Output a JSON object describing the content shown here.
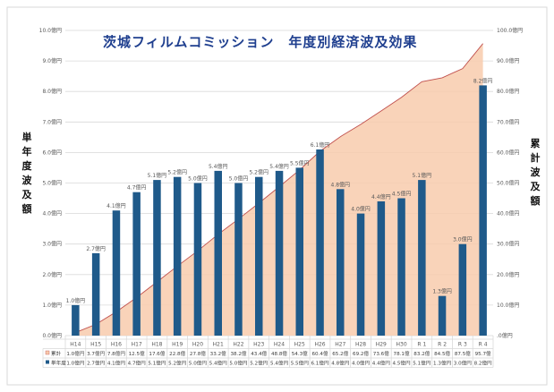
{
  "chart_data": {
    "type": "bar+area",
    "title": "茨城フィルムコミッション　年度別経済波及効果",
    "categories": [
      "H14",
      "H15",
      "H16",
      "H17",
      "H18",
      "H19",
      "H20",
      "H21",
      "H22",
      "H23",
      "H24",
      "H25",
      "H26",
      "H27",
      "H28",
      "H29",
      "H30",
      "R 1",
      "R 2",
      "R 3",
      "R 4"
    ],
    "ylabel_left": "単年度波及額",
    "ylabel_right": "累計波及額",
    "y_left": {
      "min": 0,
      "max": 10,
      "step": 1,
      "ticks": [
        "0.0億円",
        "1.0億円",
        "2.0億円",
        "3.0億円",
        "4.0億円",
        "5.0億円",
        "6.0億円",
        "7.0億円",
        "8.0億円",
        "9.0億円",
        "10.0億円"
      ]
    },
    "y_right": {
      "min": 0,
      "max": 100,
      "step": 10,
      "ticks": [
        ".0億円",
        "10.0億円",
        "20.0億円",
        "30.0億円",
        "40.0億円",
        "50.0億円",
        "60.0億円",
        "70.0億円",
        "80.0億円",
        "90.0億円",
        "100.0億円"
      ]
    },
    "series": [
      {
        "name": "単年度",
        "type": "bar",
        "axis": "left",
        "color": "#1f5a8a",
        "values": [
          1.0,
          2.7,
          4.1,
          4.7,
          5.1,
          5.2,
          5.0,
          5.4,
          5.0,
          5.2,
          5.4,
          5.5,
          6.1,
          4.8,
          4.0,
          4.4,
          4.5,
          5.1,
          1.3,
          3.0,
          8.2
        ],
        "labels": [
          "1.0億円",
          "2.7億円",
          "4.1億円",
          "4.7億円",
          "5.1億円",
          "5.2億円",
          "5.0億円",
          "5.4億円",
          "5.0億円",
          "5.2億円",
          "5.4億円",
          "5.5億円",
          "6.1億円",
          "4.8億円",
          "4.0億円",
          "4.4億円",
          "4.5億円",
          "5.1億円",
          "1.3億円",
          "3.0億円",
          "8.2億円"
        ],
        "table": [
          "1.0億円",
          "2.7億円",
          "4.1億円",
          "4.7億円",
          "5.1億円",
          "5.2億円",
          "5.0億円",
          "5.4億円",
          "5.0億円",
          "5.2億円",
          "5.4億円",
          "5.5億円",
          "6.1億円",
          "4.8億円",
          "4.0億円",
          "4.4億円",
          "4.5億円",
          "5.1億円",
          "1.3億円",
          "3.0億円",
          "8.2億円"
        ]
      },
      {
        "name": "累計",
        "type": "area",
        "axis": "right",
        "color": "#f8cbad",
        "line_color": "#c0504d",
        "values": [
          1.0,
          3.7,
          7.8,
          12.5,
          17.6,
          22.8,
          27.8,
          33.2,
          38.2,
          43.4,
          48.8,
          54.3,
          60.4,
          65.2,
          69.2,
          73.6,
          78.1,
          83.2,
          84.5,
          87.5,
          95.7
        ],
        "table": [
          "1.0億円",
          "3.7億円",
          "7.8億円",
          "12.5億",
          "17.6億",
          "22.8億",
          "27.8億",
          "33.2億",
          "38.2億",
          "43.4億",
          "48.8億",
          "54.3億",
          "60.4億",
          "65.2億",
          "69.2億",
          "73.6億",
          "78.1億",
          "83.2億",
          "84.5億",
          "87.5億",
          "95.7億"
        ]
      }
    ],
    "grid": true,
    "legend": "data-table"
  }
}
